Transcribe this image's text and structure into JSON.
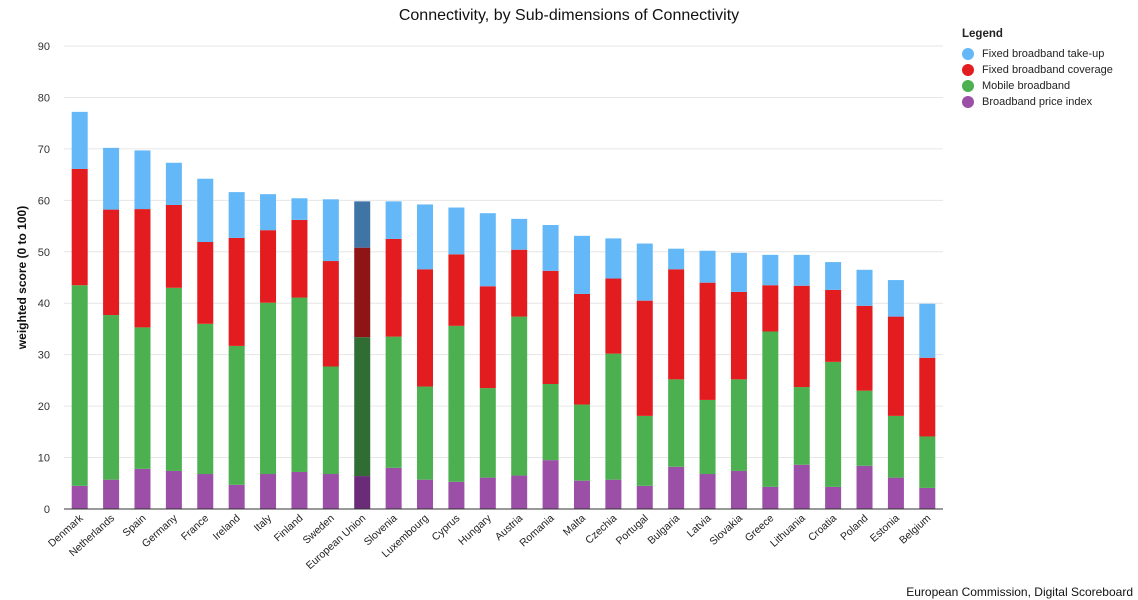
{
  "chart_data": {
    "type": "bar",
    "stacked": true,
    "title": "Connectivity, by Sub-dimensions of Connectivity",
    "xlabel": "",
    "ylabel": "weighted score (0 to 100)",
    "ylim": [
      0,
      90
    ],
    "yticks": [
      0,
      10,
      20,
      30,
      40,
      50,
      60,
      70,
      80,
      90
    ],
    "grid": true,
    "legend_title": "Legend",
    "legend_position": "top-right",
    "highlight_category": "European Union",
    "categories": [
      "Denmark",
      "Netherlands",
      "Spain",
      "Germany",
      "France",
      "Ireland",
      "Italy",
      "Finland",
      "Sweden",
      "European Union",
      "Slovenia",
      "Luxembourg",
      "Cyprus",
      "Hungary",
      "Austria",
      "Romania",
      "Malta",
      "Czechia",
      "Portugal",
      "Bulgaria",
      "Latvia",
      "Slovakia",
      "Greece",
      "Lithuania",
      "Croatia",
      "Poland",
      "Estonia",
      "Belgium"
    ],
    "series": [
      {
        "name": "Broadband price index",
        "color": "#9b4fa6",
        "highlight_color": "#6a2c78",
        "values": [
          4.5,
          5.7,
          7.8,
          7.4,
          6.8,
          4.7,
          6.8,
          7.2,
          6.8,
          6.4,
          8.0,
          5.7,
          5.3,
          6.1,
          6.5,
          9.5,
          5.5,
          5.7,
          4.5,
          8.2,
          6.8,
          7.4,
          4.3,
          8.6,
          4.3,
          8.4,
          6.1,
          4.1
        ]
      },
      {
        "name": "Mobile broadband",
        "color": "#4cb050",
        "highlight_color": "#2f6d35",
        "values": [
          39.0,
          32.0,
          27.5,
          35.6,
          29.2,
          27.0,
          33.3,
          33.9,
          20.9,
          27.0,
          25.5,
          18.1,
          30.3,
          17.4,
          30.9,
          14.8,
          14.8,
          24.5,
          13.6,
          17.0,
          14.4,
          17.8,
          30.2,
          15.1,
          24.3,
          14.6,
          12.0,
          10.0
        ]
      },
      {
        "name": "Fixed broadband coverage",
        "color": "#e31d1f",
        "highlight_color": "#8f1416",
        "values": [
          22.6,
          20.5,
          23.0,
          16.1,
          15.9,
          21.0,
          14.1,
          15.1,
          20.5,
          17.4,
          19.0,
          22.8,
          13.9,
          19.8,
          13.0,
          22.0,
          21.5,
          14.6,
          22.4,
          21.4,
          22.8,
          17.0,
          9.0,
          19.7,
          14.0,
          16.5,
          19.3,
          15.3
        ]
      },
      {
        "name": "Fixed broadband take-up",
        "color": "#64b8f7",
        "highlight_color": "#3f74a5",
        "values": [
          11.1,
          12.0,
          11.4,
          8.2,
          12.3,
          8.9,
          7.0,
          4.2,
          12.0,
          9.0,
          7.3,
          12.6,
          9.1,
          14.2,
          6.0,
          8.9,
          11.3,
          7.8,
          11.1,
          4.0,
          6.2,
          7.6,
          5.9,
          6.0,
          5.4,
          7.0,
          7.1,
          10.5
        ]
      }
    ],
    "legend_order": [
      "Fixed broadband take-up",
      "Fixed broadband coverage",
      "Mobile broadband",
      "Broadband price index"
    ]
  },
  "source_note": "European Commission, Digital Scoreboard"
}
